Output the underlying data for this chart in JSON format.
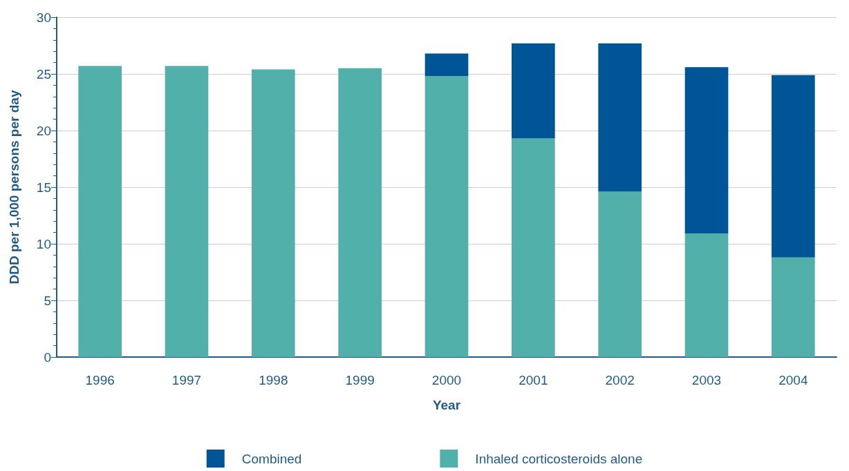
{
  "chart_data": {
    "type": "bar",
    "xlabel": "Year",
    "ylabel": "DDD per 1,000 persons per day",
    "categories": [
      "1996",
      "1997",
      "1998",
      "1999",
      "2000",
      "2001",
      "2002",
      "2003",
      "2004"
    ],
    "series": [
      {
        "name": "Inhaled corticosteroids alone",
        "color": "#52b0ab",
        "values": [
          25.7,
          25.7,
          25.4,
          25.5,
          24.8,
          19.3,
          14.6,
          10.9,
          8.8
        ]
      },
      {
        "name": "Combined",
        "color": "#005596",
        "values": [
          null,
          null,
          null,
          null,
          2.0,
          8.4,
          13.1,
          14.7,
          16.1
        ]
      }
    ],
    "stacked": true,
    "ylim": [
      0,
      30
    ],
    "yticks": [
      0,
      5,
      10,
      15,
      20,
      25,
      30
    ],
    "grid": "y",
    "legend": "bottom"
  }
}
